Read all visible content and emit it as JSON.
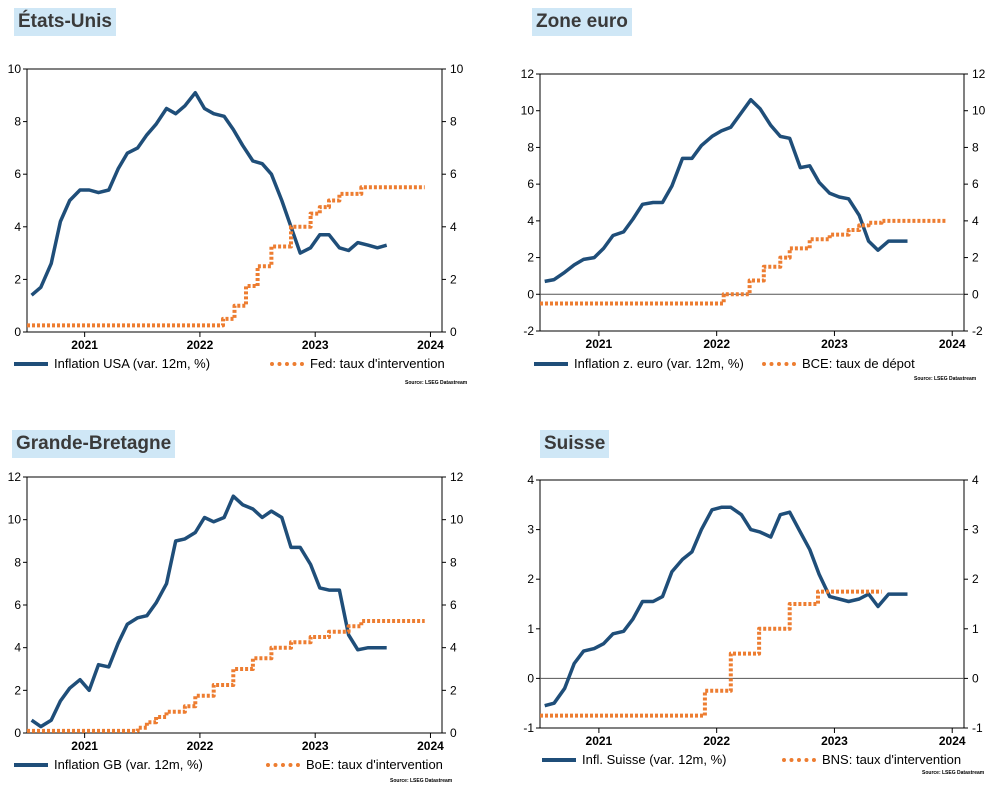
{
  "chart_data": [
    {
      "type": "line",
      "title": "États-Unis",
      "source": "Source: LSEG Datastream",
      "ylim": [
        0,
        10
      ],
      "yticks": [
        0,
        2,
        4,
        6,
        8,
        10
      ],
      "xlim": [
        2020.5,
        2024.1
      ],
      "xticks": [
        2021,
        2022,
        2023,
        2024
      ],
      "baseline": null,
      "series": [
        {
          "name": "Inflation USA (var. 12m, %)",
          "style": "solid",
          "color": "#1f4e79",
          "x": [
            2020.54,
            2020.62,
            2020.71,
            2020.79,
            2020.87,
            2020.96,
            2021.04,
            2021.12,
            2021.21,
            2021.29,
            2021.37,
            2021.46,
            2021.54,
            2021.62,
            2021.71,
            2021.79,
            2021.87,
            2021.96,
            2022.04,
            2022.12,
            2022.21,
            2022.29,
            2022.37,
            2022.46,
            2022.54,
            2022.62,
            2022.71,
            2022.79,
            2022.87,
            2022.96,
            2023.04,
            2023.12,
            2023.21,
            2023.29,
            2023.37,
            2023.46,
            2023.54,
            2023.62
          ],
          "y": [
            1.4,
            1.7,
            2.6,
            4.2,
            5.0,
            5.4,
            5.4,
            5.3,
            5.4,
            6.2,
            6.8,
            7.0,
            7.5,
            7.9,
            8.5,
            8.3,
            8.6,
            9.1,
            8.5,
            8.3,
            8.2,
            7.7,
            7.1,
            6.5,
            6.4,
            6.0,
            5.0,
            4.0,
            3.0,
            3.2,
            3.7,
            3.7,
            3.2,
            3.1,
            3.4,
            3.3,
            3.2,
            3.3
          ]
        },
        {
          "name": "Fed: taux d'intervention",
          "style": "dotted",
          "color": "#ed7d31",
          "x": [
            2020.5,
            2022.2,
            2022.2,
            2022.3,
            2022.3,
            2022.4,
            2022.4,
            2022.5,
            2022.5,
            2022.62,
            2022.62,
            2022.79,
            2022.79,
            2022.96,
            2022.96,
            2023.04,
            2023.04,
            2023.12,
            2023.12,
            2023.21,
            2023.21,
            2023.4,
            2023.4,
            2023.95
          ],
          "y": [
            0.25,
            0.25,
            0.5,
            0.5,
            1.0,
            1.0,
            1.75,
            1.75,
            2.5,
            2.5,
            3.25,
            3.25,
            4.0,
            4.0,
            4.5,
            4.5,
            4.75,
            4.75,
            5.0,
            5.0,
            5.25,
            5.25,
            5.5,
            5.5
          ]
        }
      ]
    },
    {
      "type": "line",
      "title": "Zone euro",
      "source": "Source: LSEG Datastream",
      "ylim": [
        -2,
        12
      ],
      "yticks": [
        -2,
        0,
        2,
        4,
        6,
        8,
        10,
        12
      ],
      "xlim": [
        2020.5,
        2024.1
      ],
      "xticks": [
        2021,
        2022,
        2023,
        2024
      ],
      "baseline": 0,
      "series": [
        {
          "name": "Inflation z. euro (var. 12m, %)",
          "style": "solid",
          "color": "#1f4e79",
          "x": [
            2020.54,
            2020.62,
            2020.71,
            2020.79,
            2020.87,
            2020.96,
            2021.04,
            2021.12,
            2021.21,
            2021.29,
            2021.37,
            2021.46,
            2021.54,
            2021.62,
            2021.71,
            2021.79,
            2021.87,
            2021.96,
            2022.04,
            2022.12,
            2022.21,
            2022.29,
            2022.37,
            2022.46,
            2022.54,
            2022.62,
            2022.71,
            2022.79,
            2022.87,
            2022.96,
            2023.04,
            2023.12,
            2023.21,
            2023.29,
            2023.37,
            2023.46,
            2023.54,
            2023.62
          ],
          "y": [
            0.7,
            0.8,
            1.2,
            1.6,
            1.9,
            2.0,
            2.5,
            3.2,
            3.4,
            4.1,
            4.9,
            5.0,
            5.0,
            5.9,
            7.4,
            7.4,
            8.1,
            8.6,
            8.9,
            9.1,
            9.9,
            10.6,
            10.1,
            9.2,
            8.6,
            8.5,
            6.9,
            7.0,
            6.1,
            5.5,
            5.3,
            5.2,
            4.3,
            2.9,
            2.4,
            2.9,
            2.9,
            2.9
          ]
        },
        {
          "name": "BCE: taux de dépot",
          "style": "dotted",
          "color": "#ed7d31",
          "x": [
            2020.5,
            2022.06,
            2022.06,
            2022.28,
            2022.28,
            2022.4,
            2022.4,
            2022.54,
            2022.54,
            2022.62,
            2022.62,
            2022.79,
            2022.79,
            2022.96,
            2022.96,
            2023.12,
            2023.12,
            2023.21,
            2023.21,
            2023.29,
            2023.29,
            2023.4,
            2023.4,
            2023.95
          ],
          "y": [
            -0.5,
            -0.5,
            0.0,
            0.0,
            0.75,
            0.75,
            1.5,
            1.5,
            2.0,
            2.0,
            2.5,
            2.5,
            3.0,
            3.0,
            3.25,
            3.25,
            3.5,
            3.5,
            3.75,
            3.75,
            3.9,
            3.9,
            4.0,
            4.0
          ]
        }
      ]
    },
    {
      "type": "line",
      "title": "Grande-Bretagne",
      "source": "Source: LSEG Datastream",
      "ylim": [
        0,
        12
      ],
      "yticks": [
        0,
        2,
        4,
        6,
        8,
        10,
        12
      ],
      "xlim": [
        2020.5,
        2024.1
      ],
      "xticks": [
        2021,
        2022,
        2023,
        2024
      ],
      "baseline": null,
      "series": [
        {
          "name": "Inflation GB (var. 12m, %)",
          "style": "solid",
          "color": "#1f4e79",
          "x": [
            2020.54,
            2020.62,
            2020.71,
            2020.79,
            2020.87,
            2020.96,
            2021.04,
            2021.12,
            2021.21,
            2021.29,
            2021.37,
            2021.46,
            2021.54,
            2021.62,
            2021.71,
            2021.79,
            2021.87,
            2021.96,
            2022.04,
            2022.12,
            2022.21,
            2022.29,
            2022.37,
            2022.46,
            2022.54,
            2022.62,
            2022.71,
            2022.79,
            2022.87,
            2022.96,
            2023.04,
            2023.12,
            2023.21,
            2023.29,
            2023.37,
            2023.46,
            2023.54,
            2023.62
          ],
          "y": [
            0.6,
            0.3,
            0.6,
            1.5,
            2.1,
            2.5,
            2.0,
            3.2,
            3.1,
            4.2,
            5.1,
            5.4,
            5.5,
            6.1,
            7.0,
            9.0,
            9.1,
            9.4,
            10.1,
            9.9,
            10.1,
            11.1,
            10.7,
            10.5,
            10.1,
            10.4,
            10.1,
            8.7,
            8.7,
            7.9,
            6.8,
            6.7,
            6.7,
            4.6,
            3.9,
            4.0,
            4.0,
            4.0
          ]
        },
        {
          "name": "BoE: taux d'intervention",
          "style": "dotted",
          "color": "#ed7d31",
          "x": [
            2020.5,
            2021.46,
            2021.46,
            2021.54,
            2021.54,
            2021.62,
            2021.62,
            2021.71,
            2021.71,
            2021.87,
            2021.87,
            2021.96,
            2021.96,
            2022.12,
            2022.12,
            2022.29,
            2022.29,
            2022.46,
            2022.46,
            2022.62,
            2022.62,
            2022.79,
            2022.79,
            2022.96,
            2022.96,
            2023.12,
            2023.12,
            2023.29,
            2023.29,
            2023.4,
            2023.4,
            2023.95
          ],
          "y": [
            0.1,
            0.1,
            0.25,
            0.25,
            0.5,
            0.5,
            0.75,
            0.75,
            1.0,
            1.0,
            1.25,
            1.25,
            1.75,
            1.75,
            2.25,
            2.25,
            3.0,
            3.0,
            3.5,
            3.5,
            4.0,
            4.0,
            4.25,
            4.25,
            4.5,
            4.5,
            4.75,
            4.75,
            5.0,
            5.0,
            5.25,
            5.25
          ]
        }
      ]
    },
    {
      "type": "line",
      "title": "Suisse",
      "source": "Source: LSEG Datastream",
      "ylim": [
        -1,
        4
      ],
      "yticks": [
        -1,
        0,
        1,
        2,
        3,
        4
      ],
      "xlim": [
        2020.5,
        2024.1
      ],
      "xticks": [
        2021,
        2022,
        2023,
        2024
      ],
      "baseline": 0,
      "series": [
        {
          "name": "Infl. Suisse (var. 12m, %)",
          "style": "solid",
          "color": "#1f4e79",
          "x": [
            2020.54,
            2020.62,
            2020.71,
            2020.79,
            2020.87,
            2020.96,
            2021.04,
            2021.12,
            2021.21,
            2021.29,
            2021.37,
            2021.46,
            2021.54,
            2021.62,
            2021.71,
            2021.79,
            2021.87,
            2021.96,
            2022.04,
            2022.12,
            2022.21,
            2022.29,
            2022.37,
            2022.46,
            2022.54,
            2022.62,
            2022.71,
            2022.79,
            2022.87,
            2022.96,
            2023.04,
            2023.12,
            2023.21,
            2023.29,
            2023.37,
            2023.46,
            2023.54,
            2023.62
          ],
          "y": [
            -0.55,
            -0.5,
            -0.2,
            0.3,
            0.55,
            0.6,
            0.7,
            0.9,
            0.95,
            1.2,
            1.55,
            1.55,
            1.65,
            2.15,
            2.4,
            2.55,
            3.0,
            3.4,
            3.45,
            3.45,
            3.3,
            3.0,
            2.95,
            2.85,
            3.3,
            3.35,
            2.95,
            2.6,
            2.1,
            1.65,
            1.6,
            1.55,
            1.6,
            1.7,
            1.45,
            1.7,
            1.7,
            1.7
          ]
        },
        {
          "name": "BNS: taux d'intervention",
          "style": "dotted",
          "color": "#ed7d31",
          "x": [
            2020.5,
            2021.9,
            2021.9,
            2022.12,
            2022.12,
            2022.36,
            2022.36,
            2022.62,
            2022.62,
            2022.86,
            2022.86,
            2023.0,
            2023.0,
            2023.4
          ],
          "y": [
            -0.75,
            -0.75,
            -0.25,
            -0.25,
            0.5,
            0.5,
            1.0,
            1.0,
            1.5,
            1.5,
            1.75,
            1.75,
            1.75,
            1.75
          ]
        }
      ]
    }
  ]
}
